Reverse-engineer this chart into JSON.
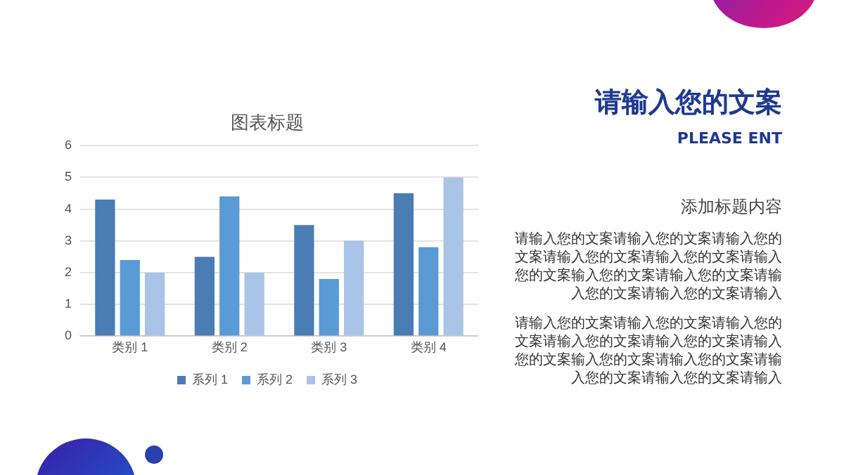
{
  "chart_data": {
    "type": "bar",
    "title": "图表标题",
    "categories": [
      "类别 1",
      "类别 2",
      "类别 3",
      "类别 4"
    ],
    "series": [
      {
        "name": "系列 1",
        "color": "#4a7db4",
        "values": [
          4.3,
          2.5,
          3.5,
          4.5
        ]
      },
      {
        "name": "系列 2",
        "color": "#5b9bd5",
        "values": [
          2.4,
          4.4,
          1.8,
          2.8
        ]
      },
      {
        "name": "系列 3",
        "color": "#a9c4e6",
        "values": [
          2,
          2,
          3,
          5
        ]
      }
    ],
    "ylim": [
      0,
      6
    ],
    "yticks": [
      0,
      1,
      2,
      3,
      4,
      5,
      6
    ],
    "grid": "y",
    "legend": "bottom",
    "annotations": [
      "请输入您的文案",
      "PLEASE ENT",
      "添加标题内容",
      "请输入您的文案请输入您的文案请输入您的文案请输入您的文案请输入您的文案请输入您的文案输入您的文案请输入您的文案请输入您的文案请输入您的文案请输入",
      "请输入您的文案请输入您的文案请输入您的文案请输入您的文案请输入您的文案请输入您的文案输入您的文案请输入您的文案请输入您的文案请输入您的文案请输入"
    ]
  }
}
